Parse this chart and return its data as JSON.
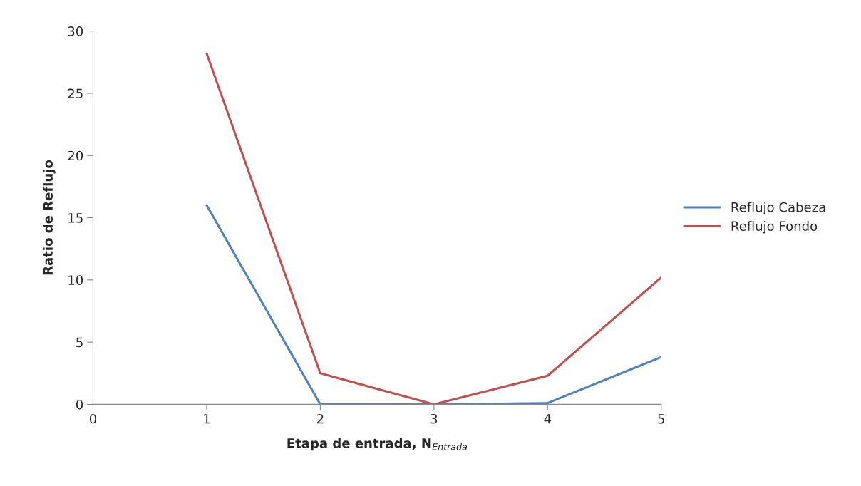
{
  "chart_data": {
    "type": "line",
    "xlabel": "Etapa de entrada, N$_{Entrada}$",
    "ylabel": "Ratio de Reflujo",
    "x": [
      1,
      2,
      3,
      4,
      5
    ],
    "series": [
      {
        "name": "Reflujo Cabeza",
        "color": "#4f81bd",
        "values": [
          16,
          0,
          0,
          0.1,
          3.8
        ]
      },
      {
        "name": "Reflujo Fondo",
        "color": "#c0504d",
        "values": [
          28.2,
          2.5,
          0,
          2.3,
          10.2
        ]
      }
    ],
    "xlim": [
      0,
      5
    ],
    "xticks": [
      0,
      1,
      2,
      3,
      4,
      5
    ],
    "ylim": [
      0,
      30
    ],
    "yticks": [
      0,
      5,
      10,
      15,
      20,
      25,
      30
    ],
    "grid": false,
    "legend": "right",
    "marker": "none",
    "line_style": "solid"
  }
}
